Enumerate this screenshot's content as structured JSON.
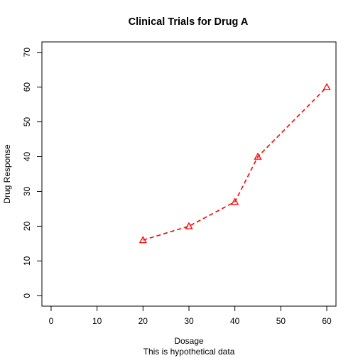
{
  "chart_data": {
    "type": "line",
    "title": "Clinical Trials for Drug A",
    "xlabel": "Dosage",
    "subtitle": "This is hypothetical data",
    "ylabel": "Drug Response",
    "xlim": [
      -2,
      62
    ],
    "ylim": [
      -3,
      73
    ],
    "x_ticks": [
      0,
      10,
      20,
      30,
      40,
      50,
      60
    ],
    "y_ticks": [
      0,
      10,
      20,
      30,
      40,
      50,
      60,
      70
    ],
    "series": [
      {
        "x": [
          20,
          30,
          40,
          45,
          60
        ],
        "y": [
          16,
          20,
          27,
          40,
          60
        ],
        "color": "#ff0000",
        "line_style": "dashed",
        "marker": "triangle-open"
      }
    ],
    "grid": false,
    "legend": "none"
  }
}
